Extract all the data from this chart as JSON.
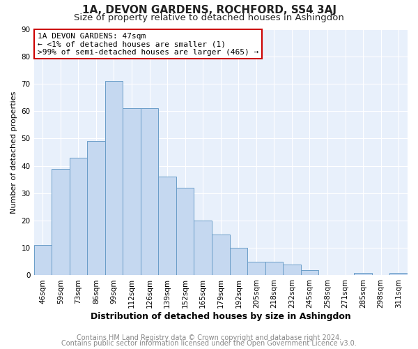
{
  "title": "1A, DEVON GARDENS, ROCHFORD, SS4 3AJ",
  "subtitle": "Size of property relative to detached houses in Ashingdon",
  "xlabel": "Distribution of detached houses by size in Ashingdon",
  "ylabel": "Number of detached properties",
  "bar_labels": [
    "46sqm",
    "59sqm",
    "73sqm",
    "86sqm",
    "99sqm",
    "112sqm",
    "126sqm",
    "139sqm",
    "152sqm",
    "165sqm",
    "179sqm",
    "192sqm",
    "205sqm",
    "218sqm",
    "232sqm",
    "245sqm",
    "258sqm",
    "271sqm",
    "285sqm",
    "298sqm",
    "311sqm"
  ],
  "bar_values": [
    11,
    39,
    43,
    49,
    71,
    61,
    61,
    36,
    32,
    20,
    15,
    10,
    5,
    5,
    4,
    2,
    0,
    0,
    1,
    0,
    1
  ],
  "bar_color": "#c5d8f0",
  "bar_edge_color": "#6a9dc8",
  "annotation_title": "1A DEVON GARDENS: 47sqm",
  "annotation_line1": "← <1% of detached houses are smaller (1)",
  "annotation_line2": ">99% of semi-detached houses are larger (465) →",
  "annotation_box_color": "#ffffff",
  "annotation_box_edge_color": "#cc0000",
  "ylim": [
    0,
    90
  ],
  "yticks": [
    0,
    10,
    20,
    30,
    40,
    50,
    60,
    70,
    80,
    90
  ],
  "footer_line1": "Contains HM Land Registry data © Crown copyright and database right 2024.",
  "footer_line2": "Contains public sector information licensed under the Open Government Licence v3.0.",
  "figure_background_color": "#ffffff",
  "plot_background_color": "#e8f0fb",
  "title_fontsize": 11,
  "subtitle_fontsize": 9.5,
  "xlabel_fontsize": 9,
  "ylabel_fontsize": 8,
  "tick_fontsize": 7.5,
  "annotation_fontsize": 8,
  "footer_fontsize": 7
}
